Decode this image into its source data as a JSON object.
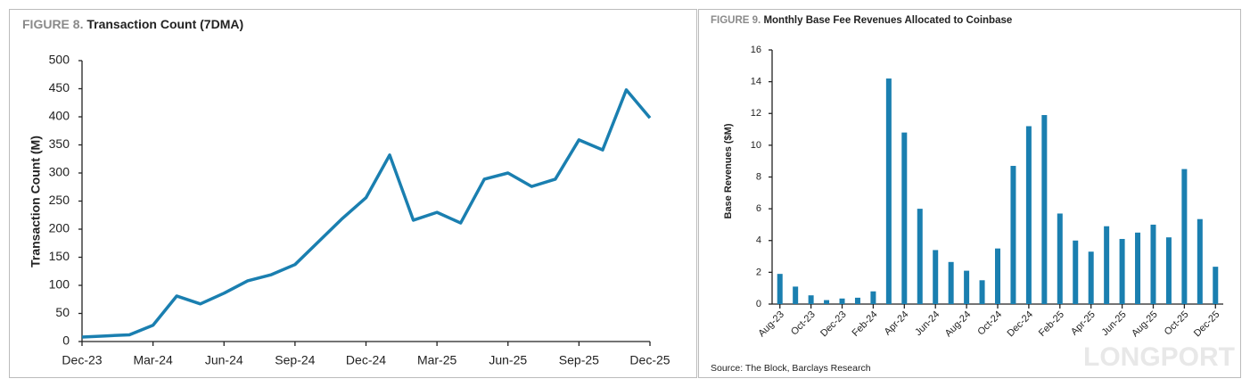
{
  "chart_data": [
    {
      "type": "line",
      "figure_label": "FIGURE 8.",
      "title": "Transaction Count (7DMA)",
      "y_label": "Transaction Count (M)",
      "color": "#1a7fb0",
      "categories": [
        "Dec-23",
        null,
        null,
        "Mar-24",
        null,
        null,
        "Jun-24",
        null,
        null,
        "Sep-24",
        null,
        null,
        "Dec-24",
        null,
        null,
        "Mar-25",
        null,
        null,
        "Jun-25",
        null,
        null,
        "Sep-25",
        null,
        null,
        "Dec-25"
      ],
      "values": [
        8,
        10,
        12,
        29,
        81,
        67,
        86,
        108,
        119,
        137,
        178,
        219,
        256,
        332,
        216,
        230,
        211,
        289,
        300,
        276,
        289,
        359,
        341,
        448,
        398
      ],
      "ylim": [
        0,
        500
      ],
      "yticks": [
        0,
        50,
        100,
        150,
        200,
        250,
        300,
        350,
        400,
        450,
        500
      ],
      "grid": false
    },
    {
      "type": "bar",
      "figure_label": "FIGURE 9.",
      "title": "Monthly Base Fee Revenues Allocated to Coinbase",
      "y_label": "Base Revenues ($M)",
      "color": "#1a7fb0",
      "categories": [
        "Aug-23",
        null,
        "Oct-23",
        null,
        "Dec-23",
        null,
        "Feb-24",
        null,
        "Apr-24",
        null,
        "Jun-24",
        null,
        "Aug-24",
        null,
        "Oct-24",
        null,
        "Dec-24",
        null,
        "Feb-25",
        null,
        "Apr-25",
        null,
        "Jun-25",
        null,
        "Aug-25",
        null,
        "Oct-25",
        null,
        "Dec-25"
      ],
      "values": [
        1.9,
        1.1,
        0.55,
        0.25,
        0.35,
        0.4,
        0.8,
        14.2,
        10.8,
        6.0,
        3.4,
        2.65,
        2.1,
        1.5,
        3.5,
        8.7,
        11.2,
        11.9,
        5.7,
        4.0,
        3.3,
        4.9,
        4.1,
        4.5,
        5.0,
        4.2,
        8.5,
        5.35,
        2.35
      ],
      "ylim": [
        0,
        16
      ],
      "yticks": [
        0,
        2,
        4,
        6,
        8,
        10,
        12,
        14,
        16
      ],
      "grid": false,
      "source": "Source: The Block, Barclays Research"
    }
  ],
  "watermark": "LONGPORT"
}
